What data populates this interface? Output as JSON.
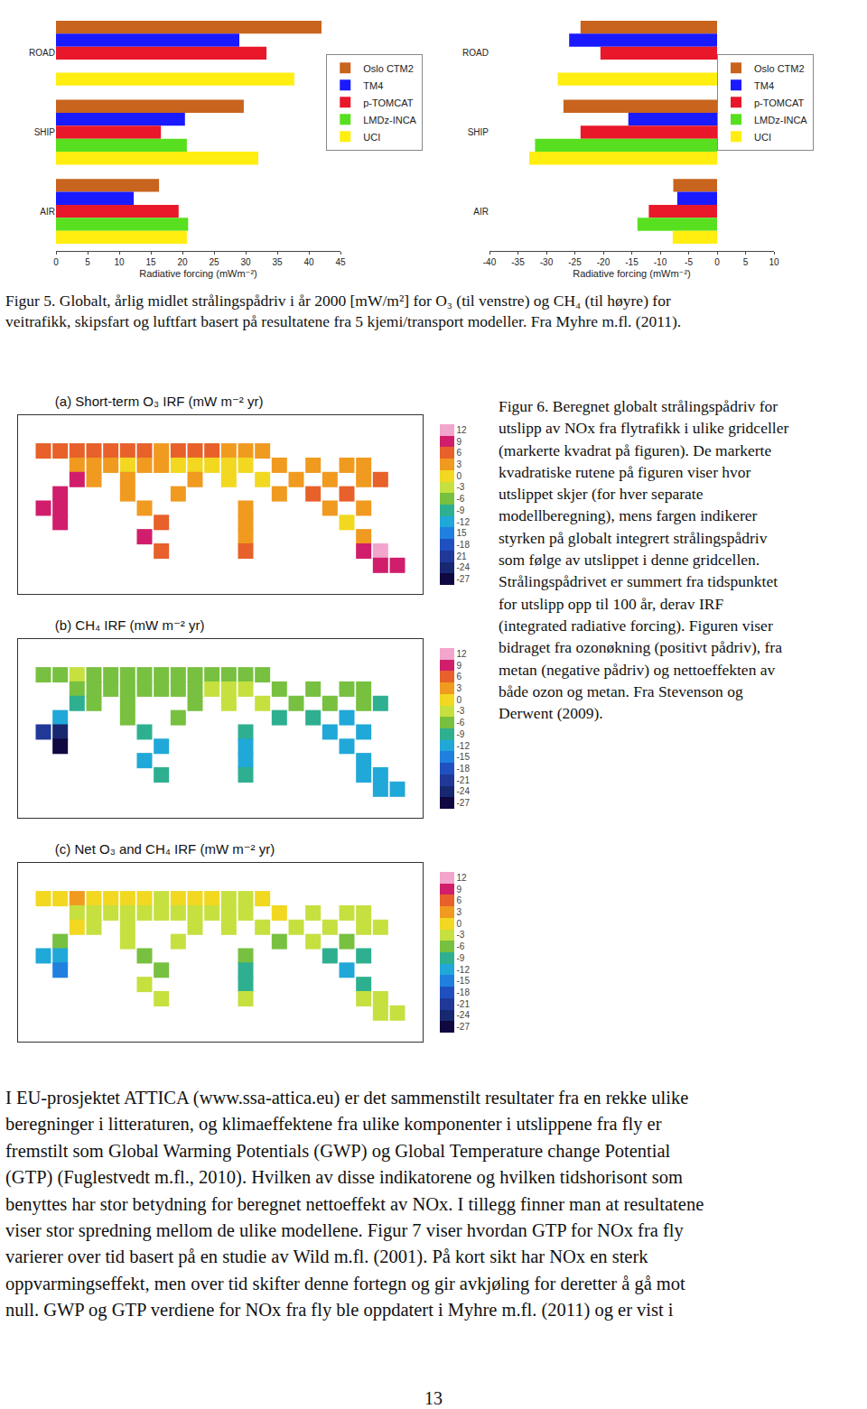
{
  "chart_data": [
    {
      "type": "bar",
      "orientation": "horizontal",
      "x_label": "Radiative forcing (mWm⁻²)",
      "categories": [
        "ROAD",
        "SHIP",
        "AIR"
      ],
      "series": [
        {
          "name": "Oslo CTM2",
          "color": "#c8641e",
          "values": [
            42,
            29.7,
            16.3
          ]
        },
        {
          "name": "TM4",
          "color": "#1a1aff",
          "values": [
            29,
            20.4,
            12.3
          ]
        },
        {
          "name": "p-TOMCAT",
          "color": "#e8182a",
          "values": [
            33.3,
            16.6,
            19.4
          ]
        },
        {
          "name": "LMDz-INCA",
          "color": "#58e020",
          "values": [
            null,
            20.7,
            20.9
          ]
        },
        {
          "name": "UCI",
          "color": "#ffee10",
          "values": [
            37.7,
            32,
            20.7
          ]
        }
      ],
      "xlim": [
        0,
        45
      ],
      "xticks": [
        0,
        5,
        10,
        15,
        20,
        25,
        30,
        35,
        40,
        45
      ],
      "legend": "upper right"
    },
    {
      "type": "bar",
      "orientation": "horizontal",
      "x_label": "Radiative forcing (mWm⁻²)",
      "categories": [
        "ROAD",
        "SHIP",
        "AIR"
      ],
      "series": [
        {
          "name": "Oslo CTM2",
          "color": "#c8641e",
          "values": [
            -24,
            -27,
            -7.7
          ]
        },
        {
          "name": "TM4",
          "color": "#1a1aff",
          "values": [
            -26,
            -15.6,
            -7
          ]
        },
        {
          "name": "p-TOMCAT",
          "color": "#e8182a",
          "values": [
            -20.5,
            -24,
            -12
          ]
        },
        {
          "name": "LMDz-INCA",
          "color": "#58e020",
          "values": [
            null,
            -32,
            -14
          ]
        },
        {
          "name": "UCI",
          "color": "#ffee10",
          "values": [
            -28,
            -33,
            -7.8
          ]
        }
      ],
      "xlim": [
        -40,
        10
      ],
      "xticks": [
        -40,
        -35,
        -30,
        -25,
        -20,
        -15,
        -10,
        -5,
        0,
        5,
        10
      ],
      "legend": "upper right"
    },
    {
      "type": "scatter",
      "marker": "square",
      "title": "(a) Short-term O₃ IRF (mW m⁻² yr)",
      "x": [
        -157.5,
        -142.5,
        -127.5,
        -112.5,
        -97.5,
        -82.5,
        -67.5,
        -52.5,
        -37.5,
        -22.5,
        -7.5,
        7.5,
        22.5,
        37.5,
        -127.5,
        -112.5,
        -97.5,
        -82.5,
        -67.5,
        -52.5,
        -37.5,
        -22.5,
        -7.5,
        7.5,
        22.5,
        52.5,
        82.5,
        112.5,
        127.5,
        -127.5,
        -112.5,
        -82.5,
        -22.5,
        7.5,
        37.5,
        67.5,
        97.5,
        127.5,
        142.5,
        -142.5,
        -82.5,
        -37.5,
        52.5,
        82.5,
        112.5,
        -142.5,
        -157.5,
        -67.5,
        22.5,
        97.5,
        127.5,
        -142.5,
        -52.5,
        22.5,
        112.5,
        -67.5,
        22.5,
        127.5,
        -52.5,
        22.5,
        127.5,
        142.5,
        142.5,
        157.5
      ],
      "y": [
        60,
        60,
        60,
        60,
        60,
        60,
        60,
        60,
        60,
        60,
        60,
        60,
        60,
        60,
        48,
        48,
        48,
        48,
        48,
        48,
        48,
        48,
        48,
        48,
        48,
        48,
        48,
        48,
        48,
        36,
        36,
        36,
        36,
        36,
        36,
        36,
        36,
        36,
        36,
        24,
        24,
        24,
        24,
        24,
        24,
        12,
        12,
        12,
        12,
        12,
        12,
        0,
        0,
        0,
        0,
        -12,
        -12,
        -12,
        -24,
        -24,
        -24,
        -24,
        -36,
        -36
      ],
      "values": [
        6,
        6,
        6,
        6,
        6,
        6,
        6,
        3,
        6,
        6,
        6,
        3,
        3,
        3,
        3,
        3,
        3,
        0,
        3,
        3,
        0,
        0,
        0,
        0,
        0,
        3,
        3,
        3,
        3,
        9,
        3,
        3,
        3,
        0,
        0,
        3,
        3,
        3,
        6,
        9,
        3,
        3,
        3,
        6,
        6,
        9,
        9,
        3,
        3,
        3,
        3,
        9,
        6,
        3,
        0,
        9,
        3,
        3,
        6,
        6,
        9,
        12,
        9,
        9
      ],
      "xlim": [
        -180,
        180
      ],
      "ylim": [
        -60,
        90
      ],
      "tick_labels": false,
      "colorbar": {
        "range": [
          -28.5,
          13.5
        ],
        "ticks": [
          12,
          9,
          6,
          3,
          0,
          -3,
          -6,
          -9,
          -12,
          {
            "value": -15,
            "label": "15"
          },
          -18,
          {
            "value": -21,
            "label": "21"
          },
          -24,
          -27
        ]
      }
    },
    {
      "type": "scatter",
      "marker": "square",
      "title": "(b) CH₄ IRF (mW m⁻² yr)",
      "x": [
        -157.5,
        -142.5,
        -127.5,
        -112.5,
        -97.5,
        -82.5,
        -67.5,
        -52.5,
        -37.5,
        -22.5,
        -7.5,
        7.5,
        22.5,
        37.5,
        -127.5,
        -112.5,
        -97.5,
        -82.5,
        -67.5,
        -52.5,
        -37.5,
        -22.5,
        -7.5,
        7.5,
        22.5,
        52.5,
        82.5,
        112.5,
        127.5,
        -127.5,
        -112.5,
        -82.5,
        -22.5,
        7.5,
        37.5,
        67.5,
        97.5,
        127.5,
        142.5,
        -142.5,
        -82.5,
        -37.5,
        52.5,
        82.5,
        112.5,
        -142.5,
        -157.5,
        -67.5,
        22.5,
        97.5,
        127.5,
        -142.5,
        -52.5,
        22.5,
        112.5,
        -67.5,
        22.5,
        127.5,
        -52.5,
        22.5,
        127.5,
        142.5,
        142.5,
        157.5
      ],
      "y": [
        60,
        60,
        60,
        60,
        60,
        60,
        60,
        60,
        60,
        60,
        60,
        60,
        60,
        60,
        48,
        48,
        48,
        48,
        48,
        48,
        48,
        48,
        48,
        48,
        48,
        48,
        48,
        48,
        48,
        36,
        36,
        36,
        36,
        36,
        36,
        36,
        36,
        36,
        36,
        24,
        24,
        24,
        24,
        24,
        24,
        12,
        12,
        12,
        12,
        12,
        12,
        0,
        0,
        0,
        0,
        -12,
        -12,
        -12,
        -24,
        -24,
        -24,
        -24,
        -36,
        -36
      ],
      "values": [
        -6,
        -6,
        -3,
        -6,
        -6,
        -6,
        -6,
        -6,
        -6,
        -6,
        -6,
        -6,
        -6,
        -6,
        -6,
        -6,
        -6,
        -6,
        -6,
        -6,
        -6,
        -6,
        -3,
        -3,
        -3,
        -6,
        -6,
        -6,
        -6,
        -9,
        -6,
        -6,
        -6,
        -3,
        -3,
        -6,
        -6,
        -6,
        -9,
        -12,
        -6,
        -6,
        -9,
        -9,
        -12,
        -24,
        -21,
        -9,
        -9,
        -12,
        -12,
        -27,
        -12,
        -12,
        -12,
        -12,
        -12,
        -12,
        -9,
        -9,
        -12,
        -12,
        -12,
        -12
      ],
      "xlim": [
        -180,
        180
      ],
      "ylim": [
        -60,
        90
      ],
      "tick_labels": false,
      "colorbar": {
        "range": [
          -28.5,
          13.5
        ],
        "ticks": [
          12,
          9,
          6,
          3,
          0,
          -3,
          -6,
          -9,
          -12,
          -15,
          -18,
          -21,
          -24,
          -27
        ]
      }
    },
    {
      "type": "scatter",
      "marker": "square",
      "title": "(c) Net O₃ and CH₄ IRF (mW m⁻² yr)",
      "x": [
        -157.5,
        -142.5,
        -127.5,
        -112.5,
        -97.5,
        -82.5,
        -67.5,
        -52.5,
        -37.5,
        -22.5,
        -7.5,
        7.5,
        22.5,
        37.5,
        -127.5,
        -112.5,
        -97.5,
        -82.5,
        -67.5,
        -52.5,
        -37.5,
        -22.5,
        -7.5,
        7.5,
        22.5,
        52.5,
        82.5,
        112.5,
        127.5,
        -127.5,
        -112.5,
        -82.5,
        -22.5,
        7.5,
        37.5,
        67.5,
        97.5,
        127.5,
        142.5,
        -142.5,
        -82.5,
        -37.5,
        52.5,
        82.5,
        112.5,
        -142.5,
        -157.5,
        -67.5,
        22.5,
        97.5,
        127.5,
        -142.5,
        -52.5,
        22.5,
        112.5,
        -67.5,
        22.5,
        127.5,
        -52.5,
        22.5,
        127.5,
        142.5,
        142.5,
        157.5
      ],
      "y": [
        60,
        60,
        60,
        60,
        60,
        60,
        60,
        60,
        60,
        60,
        60,
        60,
        60,
        60,
        48,
        48,
        48,
        48,
        48,
        48,
        48,
        48,
        48,
        48,
        48,
        48,
        48,
        48,
        48,
        36,
        36,
        36,
        36,
        36,
        36,
        36,
        36,
        36,
        36,
        24,
        24,
        24,
        24,
        24,
        24,
        12,
        12,
        12,
        12,
        12,
        12,
        0,
        0,
        0,
        0,
        -12,
        -12,
        -12,
        -24,
        -24,
        -24,
        -24,
        -36,
        -36
      ],
      "values": [
        0,
        0,
        3,
        0,
        0,
        0,
        0,
        -3,
        0,
        0,
        0,
        -3,
        -3,
        0,
        -3,
        -3,
        -3,
        -3,
        -3,
        -3,
        -3,
        -3,
        -3,
        -3,
        -3,
        0,
        -3,
        -3,
        -3,
        0,
        -3,
        -3,
        -3,
        -3,
        -3,
        -3,
        -3,
        -3,
        -3,
        -6,
        -3,
        -3,
        -6,
        -3,
        -6,
        -12,
        -12,
        -6,
        -6,
        -9,
        -9,
        -15,
        -6,
        -9,
        -12,
        -3,
        -9,
        -9,
        -3,
        -3,
        -3,
        -3,
        -3,
        -3
      ],
      "xlim": [
        -180,
        180
      ],
      "ylim": [
        -60,
        90
      ],
      "tick_labels": false,
      "colorbar": {
        "range": [
          -28.5,
          13.5
        ],
        "ticks": [
          12,
          9,
          6,
          3,
          0,
          -3,
          -6,
          -9,
          -12,
          -15,
          -18,
          -21,
          -24,
          -27
        ]
      }
    }
  ],
  "captions": {
    "figure5": [
      "Figur 5. Globalt, årlig midlet strålingspådriv i år 2000 [mW/m²] for O₃ (til venstre) og CH₄ (til høyre) for",
      "veitrafikk, skipsfart og luftfart basert på resultatene fra 5 kjemi/transport modeller. Fra Myhre m.fl. (2011)."
    ],
    "figure6": [
      "Figur 6. Beregnet globalt strålingspådriv for",
      "utslipp av NOx fra flytrafikk i ulike gridceller",
      "(markerte kvadrat på figuren). De markerte",
      "kvadratiske rutene på figuren viser hvor",
      "utslippet skjer (for hver separate",
      "modellberegning), mens fargen indikerer",
      "styrken på globalt integrert strålingspådriv",
      "som følge av utslippet i denne gridcellen.",
      "Strålingspådrivet er summert fra tidspunktet",
      "for utslipp opp til 100 år, derav IRF",
      "(integrated radiative forcing). Figuren viser",
      "bidraget fra ozonøkning (positivt pådriv), fra",
      "metan (negative pådriv) og nettoeffekten av",
      "både ozon og metan. Fra Stevenson og",
      "Derwent (2009)."
    ]
  },
  "paragraph": [
    "I EU-prosjektet ATTICA (www.ssa-attica.eu) er det sammenstilt resultater fra en rekke ulike",
    "beregninger i litteraturen, og klimaeffektene fra ulike komponenter i utslippene fra fly er",
    "fremstilt som Global Warming Potentials (GWP) og Global Temperature change Potential",
    "(GTP) (Fuglestvedt m.fl., 2010). Hvilken av disse indikatorene og hvilken tidshorisont som",
    "benyttes har stor betydning for beregnet nettoeffekt av NOx. I tillegg finner man at resultatene",
    "viser stor spredning mellom de ulike modellene. Figur 7 viser hvordan GTP for NOx fra fly",
    "varierer over tid basert på en studie av Wild m.fl. (2001). På kort sikt har NOx en sterk",
    "oppvarmingseffekt, men over tid skifter denne fortegn og gir avkjøling for deretter å gå mot",
    "null. GWP og GTP verdiene for NOx fra fly ble oppdatert i Myhre m.fl. (2011) og er vist i"
  ],
  "page_number": "13"
}
